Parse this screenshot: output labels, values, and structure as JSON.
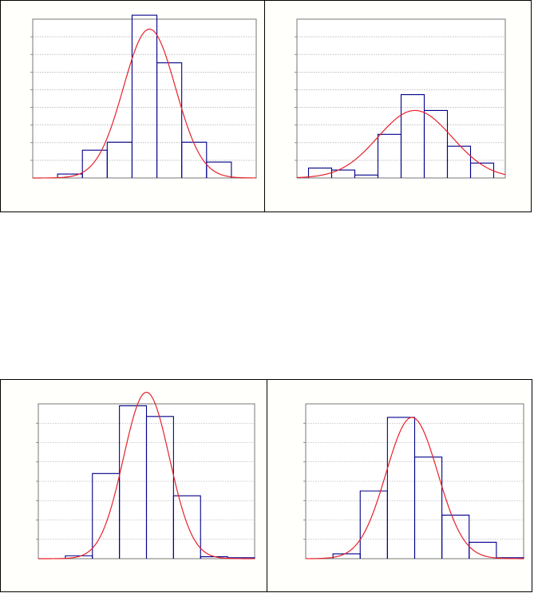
{
  "chart_data": [
    {
      "type": "bar",
      "overlay": "normal-curve",
      "grid": true,
      "xlim": [
        0,
        9
      ],
      "ylim": [
        0,
        8
      ],
      "bins": [
        {
          "start": 1,
          "end": 2,
          "value": 0.2
        },
        {
          "start": 2,
          "end": 3,
          "value": 1.4
        },
        {
          "start": 3,
          "end": 4,
          "value": 1.8
        },
        {
          "start": 4,
          "end": 5,
          "value": 8.2
        },
        {
          "start": 5,
          "end": 6,
          "value": 5.8
        },
        {
          "start": 6,
          "end": 7,
          "value": 1.8
        },
        {
          "start": 7,
          "end": 8,
          "value": 0.8
        }
      ],
      "curve": {
        "mean": 4.7,
        "sd": 1.05,
        "peak": 7.5
      }
    },
    {
      "type": "bar",
      "overlay": "normal-curve",
      "grid": true,
      "xlim": [
        0,
        9
      ],
      "ylim": [
        0,
        8
      ],
      "bins": [
        {
          "start": 0.5,
          "end": 1.5,
          "value": 0.5
        },
        {
          "start": 1.5,
          "end": 2.5,
          "value": 0.4
        },
        {
          "start": 2.5,
          "end": 3.5,
          "value": 0.15
        },
        {
          "start": 3.5,
          "end": 4.5,
          "value": 2.2
        },
        {
          "start": 4.5,
          "end": 5.5,
          "value": 4.2
        },
        {
          "start": 5.5,
          "end": 6.5,
          "value": 3.4
        },
        {
          "start": 6.5,
          "end": 7.5,
          "value": 1.6
        },
        {
          "start": 7.5,
          "end": 8.5,
          "value": 0.75
        }
      ],
      "curve": {
        "mean": 5.1,
        "sd": 1.6,
        "peak": 3.4
      }
    },
    {
      "type": "bar",
      "overlay": "normal-curve",
      "grid": true,
      "xlim": [
        0,
        8
      ],
      "ylim": [
        0,
        8
      ],
      "bins": [
        {
          "start": 1,
          "end": 2,
          "value": 0.15
        },
        {
          "start": 2,
          "end": 3,
          "value": 4.4
        },
        {
          "start": 3,
          "end": 4,
          "value": 7.9
        },
        {
          "start": 4,
          "end": 5,
          "value": 7.35
        },
        {
          "start": 5,
          "end": 6,
          "value": 3.25
        },
        {
          "start": 6,
          "end": 7,
          "value": 0.1
        },
        {
          "start": 7,
          "end": 8,
          "value": 0.05
        }
      ],
      "curve": {
        "mean": 4.0,
        "sd": 0.85,
        "peak": 8.6
      }
    },
    {
      "type": "bar",
      "overlay": "normal-curve",
      "grid": true,
      "xlim": [
        0,
        8
      ],
      "ylim": [
        0,
        8
      ],
      "bins": [
        {
          "start": 1,
          "end": 2,
          "value": 0.25
        },
        {
          "start": 2,
          "end": 3,
          "value": 3.5
        },
        {
          "start": 3,
          "end": 4,
          "value": 7.3
        },
        {
          "start": 4,
          "end": 5,
          "value": 5.25
        },
        {
          "start": 5,
          "end": 6,
          "value": 2.25
        },
        {
          "start": 6,
          "end": 7,
          "value": 0.85
        },
        {
          "start": 7,
          "end": 8,
          "value": 0.05
        }
      ],
      "curve": {
        "mean": 3.9,
        "sd": 0.95,
        "peak": 7.3
      }
    }
  ]
}
